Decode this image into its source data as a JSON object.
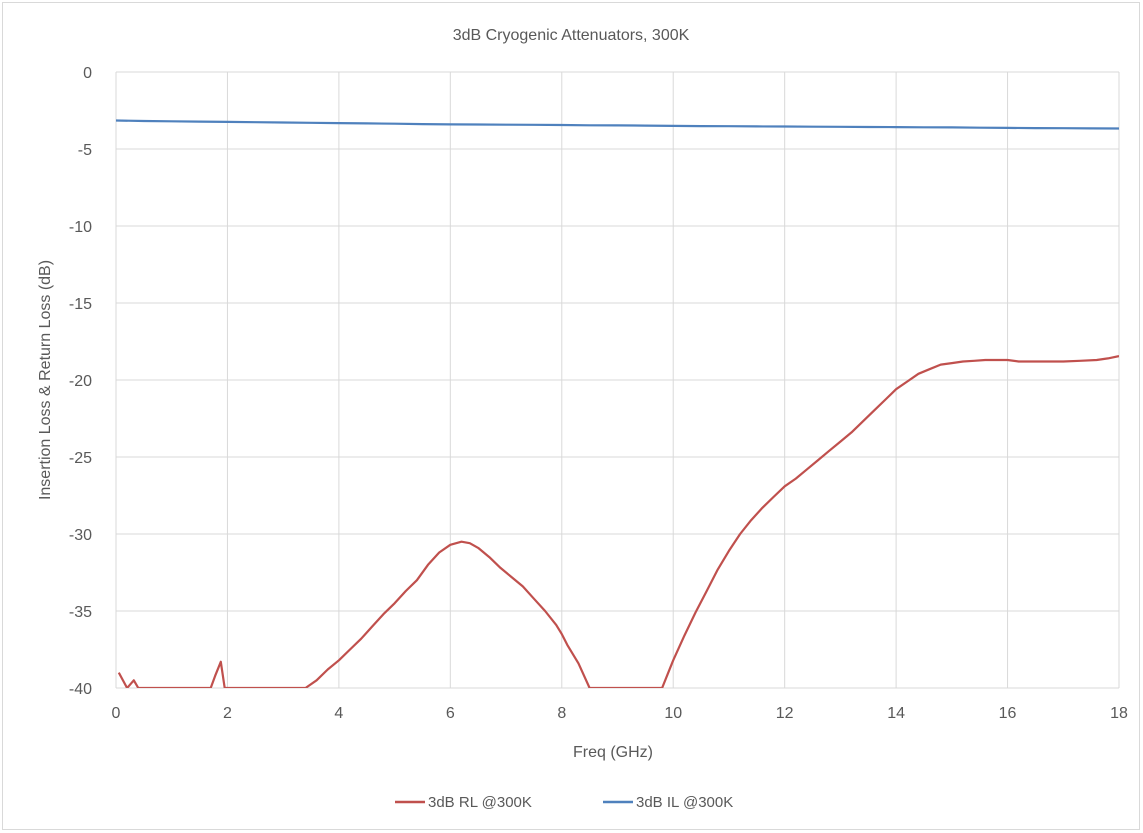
{
  "chart_data": {
    "type": "line",
    "title": "3dB Cryogenic Attenuators, 300K",
    "xlabel": "Freq (GHz)",
    "ylabel": "Insertion Loss & Return Loss (dB)",
    "xlim": [
      0,
      18
    ],
    "ylim": [
      -40,
      0
    ],
    "xticks": [
      "0",
      "2",
      "4",
      "6",
      "8",
      "10",
      "12",
      "14",
      "16",
      "18"
    ],
    "yticks": [
      "0",
      "-5",
      "-10",
      "-15",
      "-20",
      "-25",
      "-30",
      "-35",
      "-40"
    ],
    "grid": true,
    "legend_position": "bottom",
    "series": [
      {
        "name": "3dB RL @300K",
        "color": "#c0504d",
        "x": [
          0.05,
          0.2,
          0.32,
          0.4,
          1.7,
          1.78,
          1.88,
          1.95,
          3.4,
          3.6,
          3.8,
          4.0,
          4.2,
          4.4,
          4.6,
          4.8,
          5.0,
          5.2,
          5.4,
          5.6,
          5.8,
          6.0,
          6.2,
          6.35,
          6.5,
          6.7,
          6.9,
          7.1,
          7.3,
          7.5,
          7.7,
          7.9,
          8.0,
          8.1,
          8.3,
          8.5,
          9.8,
          10.0,
          10.2,
          10.4,
          10.6,
          10.8,
          11.0,
          11.2,
          11.4,
          11.6,
          11.8,
          12.0,
          12.2,
          12.4,
          12.6,
          12.8,
          13.0,
          13.2,
          13.4,
          13.6,
          13.8,
          14.0,
          14.2,
          14.4,
          14.6,
          14.8,
          15.0,
          15.2,
          15.4,
          15.6,
          15.8,
          16.0,
          16.2,
          16.5,
          16.8,
          17.0,
          17.3,
          17.6,
          17.8,
          18.0
        ],
        "y": [
          -39.0,
          -40.0,
          -39.5,
          -40.0,
          -40.0,
          -39.2,
          -38.3,
          -40.0,
          -40.0,
          -39.5,
          -38.8,
          -38.2,
          -37.5,
          -36.8,
          -36.0,
          -35.2,
          -34.5,
          -33.7,
          -33.0,
          -32.0,
          -31.2,
          -30.7,
          -30.5,
          -30.6,
          -30.9,
          -31.5,
          -32.2,
          -32.8,
          -33.4,
          -34.2,
          -35.0,
          -35.9,
          -36.5,
          -37.2,
          -38.4,
          -40.0,
          -40.0,
          -38.2,
          -36.6,
          -35.1,
          -33.7,
          -32.3,
          -31.1,
          -30.0,
          -29.1,
          -28.3,
          -27.6,
          -26.9,
          -26.4,
          -25.8,
          -25.2,
          -24.6,
          -24.0,
          -23.4,
          -22.7,
          -22.0,
          -21.3,
          -20.6,
          -20.1,
          -19.6,
          -19.3,
          -19.0,
          -18.9,
          -18.8,
          -18.75,
          -18.7,
          -18.7,
          -18.7,
          -18.8,
          -18.8,
          -18.8,
          -18.8,
          -18.75,
          -18.7,
          -18.6,
          -18.45
        ]
      },
      {
        "name": "3dB IL @300K",
        "color": "#4f81bd",
        "x": [
          0.0,
          0.5,
          1.0,
          1.5,
          2.0,
          2.5,
          3.0,
          3.5,
          4.0,
          4.5,
          5.0,
          5.5,
          6.0,
          6.5,
          7.0,
          7.5,
          8.0,
          8.5,
          9.0,
          9.5,
          10.0,
          10.5,
          11.0,
          11.5,
          12.0,
          12.5,
          13.0,
          13.5,
          14.0,
          14.5,
          15.0,
          15.5,
          16.0,
          16.5,
          17.0,
          17.5,
          18.0
        ],
        "y": [
          -3.15,
          -3.18,
          -3.2,
          -3.22,
          -3.24,
          -3.26,
          -3.28,
          -3.3,
          -3.32,
          -3.34,
          -3.36,
          -3.38,
          -3.4,
          -3.41,
          -3.42,
          -3.43,
          -3.44,
          -3.46,
          -3.47,
          -3.48,
          -3.5,
          -3.51,
          -3.52,
          -3.53,
          -3.54,
          -3.55,
          -3.56,
          -3.57,
          -3.58,
          -3.59,
          -3.6,
          -3.62,
          -3.63,
          -3.64,
          -3.65,
          -3.66,
          -3.67
        ]
      }
    ]
  }
}
